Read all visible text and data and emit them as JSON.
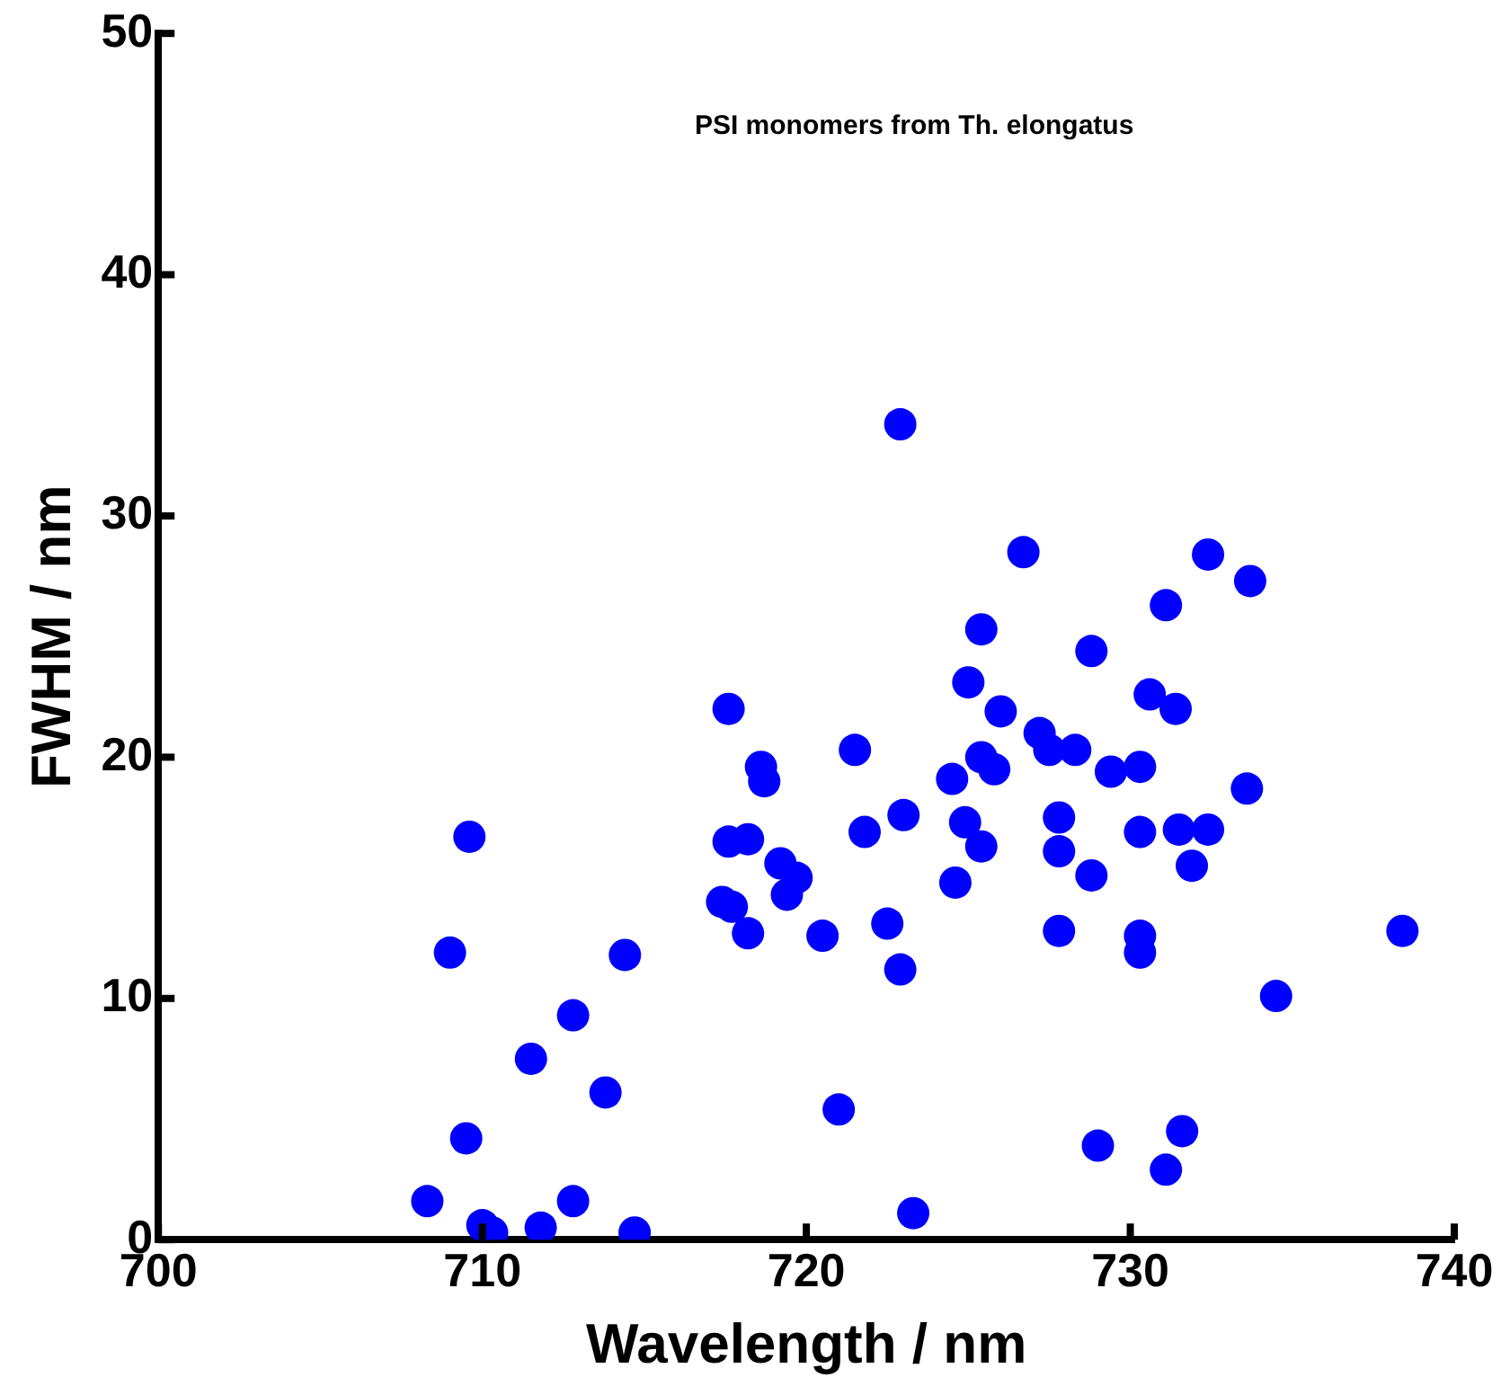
{
  "chart_data": {
    "type": "scatter",
    "title": "PSI monomers from Th. elongatus",
    "xlabel": "Wavelength / nm",
    "ylabel": "FWHM / nm",
    "xlim": [
      700,
      740
    ],
    "xticks": [
      700,
      710,
      720,
      730,
      740
    ],
    "ylim": [
      0,
      50
    ],
    "yticks": [
      0,
      10,
      20,
      30,
      40,
      50
    ],
    "grid": false,
    "legend": false,
    "marker": "circle",
    "series": [
      {
        "color": "#0000ff",
        "x": [
          722.9,
          726.7,
          732.4,
          733.7,
          731.1,
          725.4,
          728.8,
          725.0,
          730.6,
          731.4,
          726.0,
          727.2,
          727.5,
          728.3,
          725.4,
          725.8,
          724.5,
          729.4,
          730.3,
          733.6,
          723.0,
          724.9,
          727.8,
          730.3,
          731.5,
          732.4,
          725.4,
          727.8,
          731.9,
          728.8,
          724.6,
          722.5,
          727.8,
          730.3,
          730.3,
          738.4,
          722.9,
          734.5,
          729.0,
          731.6,
          731.1,
          723.3,
          717.6,
          721.5,
          718.6,
          718.7,
          709.6,
          717.6,
          718.2,
          721.8,
          719.2,
          719.7,
          719.4,
          717.4,
          717.7,
          718.2,
          720.5,
          709.0,
          714.4,
          712.8,
          711.5,
          713.8,
          721.0,
          709.5,
          708.3,
          712.8,
          710.0,
          710.3,
          711.8,
          714.7
        ],
        "values": [
          33.8,
          28.5,
          28.4,
          27.3,
          26.3,
          25.3,
          24.4,
          23.1,
          22.6,
          22.0,
          21.9,
          21.0,
          20.3,
          20.3,
          20.0,
          19.5,
          19.1,
          19.4,
          19.6,
          18.7,
          17.6,
          17.3,
          17.5,
          16.9,
          17.0,
          17.0,
          16.3,
          16.1,
          15.5,
          15.1,
          14.8,
          13.1,
          12.8,
          12.6,
          11.9,
          12.8,
          11.2,
          10.1,
          3.9,
          4.5,
          2.9,
          1.1,
          22.0,
          20.3,
          19.6,
          19.0,
          16.7,
          16.5,
          16.6,
          16.9,
          15.6,
          15.0,
          14.3,
          14.0,
          13.8,
          12.7,
          12.6,
          11.9,
          11.8,
          9.3,
          7.5,
          6.1,
          5.4,
          4.2,
          1.6,
          1.6,
          0.6,
          0.3,
          0.5,
          0.3
        ]
      }
    ]
  }
}
